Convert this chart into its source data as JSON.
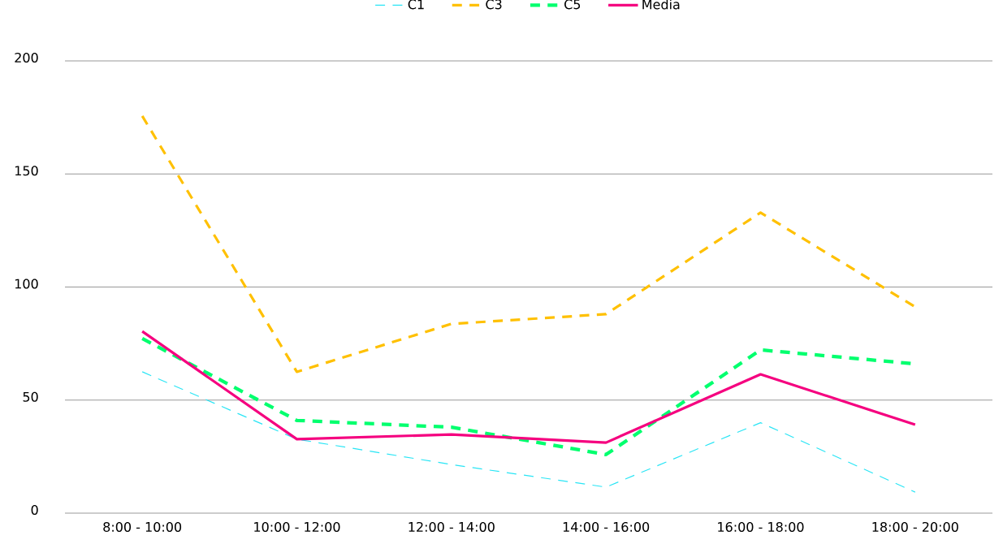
{
  "chart_data": {
    "type": "line",
    "categories": [
      "8:00 - 10:00",
      "10:00 - 12:00",
      "12:00 - 14:00",
      "14:00 - 16:00",
      "16:00 - 18:00",
      "18:00 - 20:00"
    ],
    "series": [
      {
        "name": "C1",
        "color": "#29e5f5",
        "line_style": "dashed",
        "values": [
          62.5,
          32.7,
          21.5,
          11.5,
          40,
          9.3
        ]
      },
      {
        "name": "C3",
        "color": "#ffc000",
        "line_style": "dashed",
        "values": [
          175.6,
          62.5,
          83.7,
          88,
          132.9,
          91.2
        ]
      },
      {
        "name": "C5",
        "color": "#00ff6e",
        "line_style": "dashed",
        "values": [
          77.2,
          41,
          38,
          25.9,
          72.2,
          66
        ]
      },
      {
        "name": "Media",
        "color": "#f5007f",
        "line_style": "solid",
        "values": [
          80.4,
          32.7,
          34.8,
          31.2,
          61.4,
          39.1
        ]
      }
    ],
    "ylim": [
      0,
      200
    ],
    "yticks": [
      0,
      50,
      100,
      150,
      200
    ],
    "grid": "y",
    "legend": "top"
  }
}
